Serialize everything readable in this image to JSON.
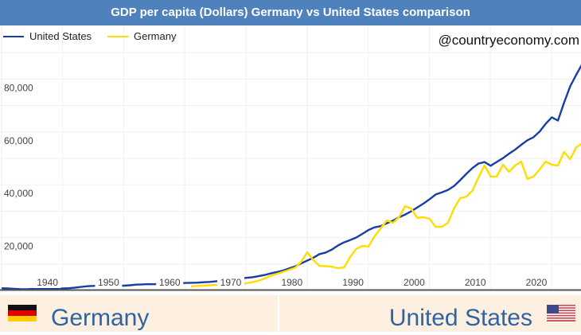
{
  "header": {
    "title": "GDP per capita (Dollars) Germany vs United States comparison"
  },
  "watermark": "@countryeconomy.com",
  "countries": {
    "left": "Germany",
    "right": "United States"
  },
  "chart_data": {
    "type": "line",
    "title": "GDP per capita (Dollars) Germany vs United States comparison",
    "xlabel": "",
    "ylabel": "",
    "xlim": [
      1929,
      2024
    ],
    "ylim": [
      0,
      100000
    ],
    "grid": true,
    "legend": "top-left",
    "x_ticks": [
      "1940",
      "1950",
      "1960",
      "1970",
      "1980",
      "1990",
      "2000",
      "2010",
      "2020"
    ],
    "y_ticks": [
      "20,000",
      "40,000",
      "60,000",
      "80,000"
    ],
    "y_tick_values": [
      20000,
      40000,
      60000,
      80000
    ],
    "series": [
      {
        "name": "United States",
        "color": "#1a3ca8",
        "start_year": 1929,
        "values": [
          850,
          740,
          630,
          510,
          490,
          560,
          620,
          700,
          760,
          710,
          770,
          850,
          1060,
          1320,
          1600,
          1730,
          1750,
          1650,
          1730,
          1850,
          1820,
          1970,
          2190,
          2280,
          2390,
          2360,
          2510,
          2590,
          2670,
          2650,
          2840,
          2880,
          2940,
          3100,
          3230,
          3420,
          3660,
          3950,
          4100,
          4430,
          4760,
          5000,
          5400,
          5850,
          6460,
          6950,
          7520,
          8300,
          9140,
          10220,
          11340,
          12380,
          13760,
          14330,
          15440,
          17000,
          18200,
          19070,
          20040,
          21380,
          22860,
          23890,
          24340,
          25420,
          26390,
          27690,
          28690,
          29970,
          31460,
          32850,
          34510,
          36330,
          37130,
          38020,
          39490,
          41710,
          44110,
          46300,
          48050,
          48570,
          47190,
          48650,
          50070,
          51780,
          53290,
          55120,
          56850,
          58020,
          60110,
          63060,
          65550,
          64320,
          71060,
          77250,
          81630,
          85810
        ]
      },
      {
        "name": "Germany",
        "color": "#ffdd00",
        "start_year": 1960,
        "values": [
          1500,
          1700,
          1850,
          1950,
          2100,
          2200,
          2300,
          2350,
          2500,
          2700,
          3100,
          3700,
          4500,
          5500,
          6300,
          7000,
          7800,
          8600,
          10800,
          14500,
          11400,
          9300,
          9200,
          9000,
          8400,
          8700,
          12600,
          15700,
          16900,
          16600,
          20500,
          23500,
          26500,
          25600,
          27700,
          31900,
          31000,
          27400,
          27700,
          27100,
          24100,
          24100,
          25600,
          31000,
          34900,
          35500,
          37700,
          42800,
          47300,
          43100,
          43100,
          47600,
          44900,
          47300,
          48800,
          42200,
          43100,
          45800,
          48800,
          47600,
          47300,
          52400,
          49700,
          54200,
          55700
        ]
      }
    ]
  }
}
